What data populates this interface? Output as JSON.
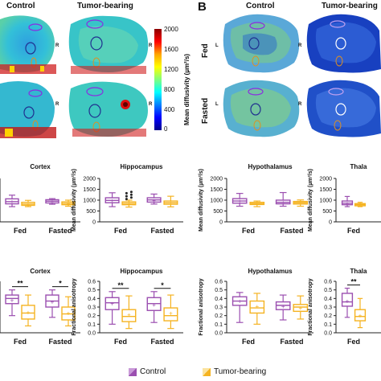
{
  "panel_b_label": "B",
  "column_headers": {
    "a_control": "Control",
    "a_tumor": "Tumor-bearing",
    "b_control": "Control",
    "b_tumor": "Tumor-bearing"
  },
  "row_labels": {
    "fed": "Fed",
    "fasted": "Fasted"
  },
  "side_labels": {
    "left": "L",
    "right": "R"
  },
  "colorbar": {
    "title": "Mean diffusivity (µm²/s)",
    "ticks": [
      "2000",
      "1600",
      "1200",
      "800",
      "400",
      "0"
    ]
  },
  "legend": {
    "control": "Control",
    "tumor": "Tumor-bearing"
  },
  "colors": {
    "control": "#9b4fb0",
    "tumor": "#f5b321",
    "sig_line": "#111111"
  },
  "chart_data": [
    {
      "type": "box",
      "title": "Cortex",
      "ylabel": "",
      "ylim": [
        0,
        2000
      ],
      "categories": [
        "Fed",
        "Fasted"
      ],
      "series": [
        {
          "name": "Control",
          "boxes": [
            [
              700,
              830,
              930,
              1060,
              1230,
              940
            ],
            [
              810,
              870,
              950,
              1020,
              1070,
              940
            ]
          ]
        },
        {
          "name": "Tumor-bearing",
          "boxes": [
            [
              700,
              760,
              820,
              900,
              990,
              820
            ],
            [
              720,
              790,
              850,
              920,
              1000,
              840
            ]
          ]
        }
      ],
      "significance": []
    },
    {
      "type": "box",
      "title": "Hippocampus",
      "ylabel": "Mean diffusivity (µm²/s)",
      "ylim": [
        0,
        2000
      ],
      "yticks": [
        "0",
        "500",
        "1000",
        "1500",
        "2000"
      ],
      "categories": [
        "Fed",
        "Fasted"
      ],
      "series": [
        {
          "name": "Control",
          "boxes": [
            [
              700,
              880,
              990,
              1110,
              1340,
              990
            ],
            [
              820,
              910,
              1010,
              1110,
              1280,
              990
            ]
          ]
        },
        {
          "name": "Tumor-bearing",
          "boxes": [
            [
              680,
              790,
              850,
              920,
              1000,
              850
            ],
            [
              690,
              810,
              880,
              960,
              1180,
              880
            ]
          ]
        }
      ],
      "outliers": [
        1050,
        1120,
        1180,
        1250,
        1320,
        1380
      ],
      "significance": []
    },
    {
      "type": "box",
      "title": "Hypothalamus",
      "ylabel": "Mean diffusivity (µm²/s)",
      "ylim": [
        0,
        2000
      ],
      "yticks": [
        "0",
        "500",
        "1000",
        "1500",
        "2000"
      ],
      "categories": [
        "Fed",
        "Fasted"
      ],
      "series": [
        {
          "name": "Control",
          "boxes": [
            [
              720,
              860,
              960,
              1070,
              1310,
              960
            ],
            [
              720,
              830,
              900,
              1000,
              1350,
              900
            ]
          ]
        },
        {
          "name": "Tumor-bearing",
          "boxes": [
            [
              700,
              800,
              840,
              900,
              960,
              840
            ],
            [
              720,
              820,
              880,
              940,
              1010,
              880
            ]
          ]
        }
      ],
      "significance": []
    },
    {
      "type": "box",
      "title": "Thala",
      "ylabel": "Mean diffusivity (µm²/s)",
      "ylim": [
        0,
        2000
      ],
      "yticks": [
        "0",
        "500",
        "1000",
        "1500",
        "2000"
      ],
      "categories": [
        "Fed"
      ],
      "series": [
        {
          "name": "Control",
          "boxes": [
            [
              700,
              790,
              860,
              960,
              1170,
              860
            ]
          ]
        },
        {
          "name": "Tumor-bearing",
          "boxes": [
            [
              700,
              740,
              790,
              840,
              900,
              790
            ]
          ]
        }
      ],
      "significance": []
    },
    {
      "type": "box",
      "title": "Cortex",
      "ylabel": "",
      "ylim": [
        0,
        0.6
      ],
      "categories": [
        "Fed",
        "Fasted"
      ],
      "series": [
        {
          "name": "Control",
          "boxes": [
            [
              0.2,
              0.34,
              0.4,
              0.44,
              0.5,
              0.38
            ],
            [
              0.18,
              0.3,
              0.37,
              0.44,
              0.5,
              0.36
            ]
          ]
        },
        {
          "name": "Tumor-bearing",
          "boxes": [
            [
              0.08,
              0.16,
              0.23,
              0.32,
              0.44,
              0.24
            ],
            [
              0.08,
              0.15,
              0.22,
              0.3,
              0.42,
              0.23
            ]
          ]
        }
      ],
      "significance": [
        {
          "group": 0,
          "label": "**"
        },
        {
          "group": 1,
          "label": "*"
        }
      ]
    },
    {
      "type": "box",
      "title": "Hippocampus",
      "ylabel": "Fractional anisotropy",
      "ylim": [
        0,
        0.6
      ],
      "yticks": [
        "0.0",
        "0.1",
        "0.2",
        "0.3",
        "0.4",
        "0.5",
        "0.6"
      ],
      "categories": [
        "Fed",
        "Fasted"
      ],
      "series": [
        {
          "name": "Control",
          "boxes": [
            [
              0.1,
              0.27,
              0.35,
              0.41,
              0.48,
              0.34
            ],
            [
              0.12,
              0.26,
              0.34,
              0.41,
              0.48,
              0.33
            ]
          ]
        },
        {
          "name": "Tumor-bearing",
          "boxes": [
            [
              0.05,
              0.13,
              0.19,
              0.27,
              0.43,
              0.21
            ],
            [
              0.05,
              0.14,
              0.2,
              0.29,
              0.44,
              0.23
            ]
          ]
        }
      ],
      "significance": [
        {
          "group": 0,
          "label": "**"
        },
        {
          "group": 1,
          "label": "*"
        }
      ]
    },
    {
      "type": "box",
      "title": "Hypothalamus",
      "ylabel": "Fractional anisotropy",
      "ylim": [
        0,
        0.6
      ],
      "yticks": [
        "0.0",
        "0.1",
        "0.2",
        "0.3",
        "0.4",
        "0.5",
        "0.6"
      ],
      "categories": [
        "Fed",
        "Fasted"
      ],
      "series": [
        {
          "name": "Control",
          "boxes": [
            [
              0.12,
              0.32,
              0.37,
              0.42,
              0.47,
              0.37
            ],
            [
              0.15,
              0.27,
              0.32,
              0.36,
              0.44,
              0.31
            ]
          ]
        },
        {
          "name": "Tumor-bearing",
          "boxes": [
            [
              0.1,
              0.23,
              0.29,
              0.37,
              0.46,
              0.31
            ],
            [
              0.16,
              0.25,
              0.3,
              0.33,
              0.43,
              0.29
            ]
          ]
        }
      ],
      "significance": []
    },
    {
      "type": "box",
      "title": "Thala",
      "ylabel": "Fractional anisotropy",
      "ylim": [
        0,
        0.6
      ],
      "yticks": [
        "0.0",
        "0.1",
        "0.2",
        "0.3",
        "0.4",
        "0.5",
        "0.6"
      ],
      "categories": [
        "Fed"
      ],
      "series": [
        {
          "name": "Control",
          "boxes": [
            [
              0.18,
              0.31,
              0.36,
              0.46,
              0.52,
              0.37
            ]
          ]
        },
        {
          "name": "Tumor-bearing",
          "boxes": [
            [
              0.06,
              0.14,
              0.19,
              0.27,
              0.4,
              0.2
            ]
          ]
        }
      ],
      "significance": [
        {
          "group": 0,
          "label": "**"
        }
      ]
    }
  ]
}
